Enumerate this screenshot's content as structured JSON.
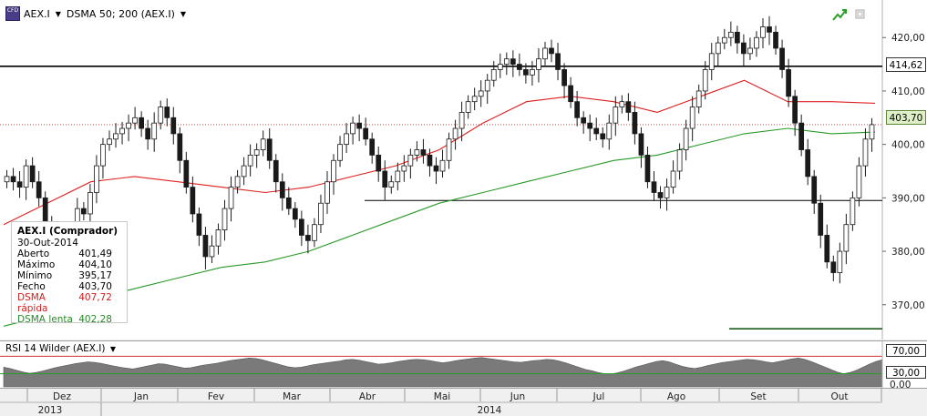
{
  "header": {
    "ticker": "AEX.I",
    "cfd_icon": "CFD",
    "indicator": "DSMA 50; 200 (AEX.I)",
    "icons": [
      "cfd-icon",
      "dropdown-icon",
      "trend-icon",
      "window-icon"
    ]
  },
  "info": {
    "title": "AEX.I (Comprador)",
    "date": "30-Out-2014",
    "rows": [
      {
        "label": "Aberto",
        "value": "401,49"
      },
      {
        "label": "Máximo",
        "value": "404,10"
      },
      {
        "label": "Mínimo",
        "value": "395,17"
      },
      {
        "label": "Fecho",
        "value": "403,70"
      },
      {
        "label": "DSMA rápida",
        "value": "407,72"
      },
      {
        "label": "DSMA lenta",
        "value": "402,28"
      }
    ]
  },
  "price_labels": {
    "hline": "414,62",
    "current": "403,70"
  },
  "rsi": {
    "title": "RSI 14 Wilder (AEX.I)",
    "upper": "70,00",
    "lower": "30,00",
    "zero": "0,00"
  },
  "colors": {
    "candle": "#1a1a1a",
    "fast_ma": "#e02020",
    "slow_ma": "#2a9a2a",
    "rsi_fill": "#7a7a7a",
    "current_line": "#c03030"
  },
  "chart_data": {
    "type": "candlestick",
    "ylim": [
      364,
      426
    ],
    "yticks": [
      "420,00",
      "410,00",
      "400,00",
      "390,00",
      "380,00",
      "370,00"
    ],
    "ytick_values": [
      420,
      410,
      400,
      390,
      380,
      370
    ],
    "months": [
      "Dez",
      "Jan",
      "Fev",
      "Mar",
      "Abr",
      "Mai",
      "Jun",
      "Jul",
      "Ago",
      "Set",
      "Out"
    ],
    "years": [
      "2013",
      "2014"
    ],
    "horizontal_lines": [
      414.62,
      389.5,
      365.5
    ],
    "current_price": 403.7,
    "close": [
      394,
      393,
      392,
      396,
      393,
      390,
      385,
      382,
      378,
      380,
      384,
      388,
      387,
      391,
      396,
      400,
      401,
      402,
      403,
      404,
      405,
      403,
      401,
      404,
      407,
      405,
      402,
      397,
      392,
      387,
      383,
      379,
      381,
      384,
      388,
      392,
      394,
      396,
      398,
      399,
      401,
      397,
      393,
      390,
      388,
      386,
      383,
      382,
      385,
      389,
      393,
      397,
      400,
      402,
      404,
      403,
      401,
      398,
      395,
      392,
      393,
      395,
      396,
      398,
      399,
      398,
      396,
      395,
      397,
      401,
      403,
      406,
      408,
      409,
      410,
      412,
      414,
      415,
      416,
      415,
      414,
      413,
      414,
      416,
      418,
      417,
      414,
      411,
      408,
      405,
      404,
      403,
      402,
      401,
      404,
      407,
      408,
      406,
      402,
      398,
      393,
      391,
      390,
      392,
      395,
      399,
      403,
      407,
      410,
      414,
      417,
      419,
      420,
      421,
      419,
      417,
      418,
      420,
      422,
      421,
      418,
      414,
      409,
      404,
      399,
      394,
      389,
      383,
      378,
      376,
      380,
      385,
      390,
      396,
      401,
      403.7
    ],
    "fast_ma": {
      "x": [
        0,
        0.05,
        0.1,
        0.15,
        0.2,
        0.25,
        0.3,
        0.35,
        0.4,
        0.45,
        0.5,
        0.55,
        0.6,
        0.65,
        0.7,
        0.75,
        0.8,
        0.85,
        0.9,
        0.95,
        1.0
      ],
      "y": [
        385,
        389,
        393,
        394,
        393,
        392,
        391,
        392,
        394,
        396,
        399,
        404,
        408,
        409,
        408,
        406,
        409,
        412,
        408,
        408,
        407.7
      ]
    },
    "slow_ma": {
      "x": [
        0,
        0.05,
        0.1,
        0.15,
        0.2,
        0.25,
        0.3,
        0.35,
        0.4,
        0.45,
        0.5,
        0.55,
        0.6,
        0.65,
        0.7,
        0.75,
        0.8,
        0.85,
        0.9,
        0.95,
        1.0
      ],
      "y": [
        366,
        368,
        371,
        373,
        375,
        377,
        378,
        380,
        383,
        386,
        389,
        391,
        393,
        395,
        397,
        398,
        400,
        402,
        403,
        402,
        402.3
      ]
    },
    "rsi_values": [
      45,
      42,
      38,
      34,
      31,
      33,
      36,
      40,
      44,
      47,
      50,
      53,
      55,
      57,
      56,
      54,
      51,
      48,
      45,
      43,
      41,
      44,
      47,
      50,
      53,
      52,
      49,
      46,
      43,
      44,
      47,
      50,
      52,
      54,
      57,
      60,
      62,
      64,
      66,
      65,
      62,
      58,
      54,
      50,
      46,
      44,
      45,
      48,
      51,
      53,
      55,
      57,
      59,
      62,
      63,
      61,
      58,
      55,
      52,
      53,
      55,
      58,
      60,
      62,
      63,
      62,
      60,
      57,
      55,
      57,
      60,
      62,
      64,
      66,
      67,
      65,
      63,
      61,
      59,
      57,
      56,
      58,
      60,
      61,
      63,
      62,
      59,
      55,
      50,
      45,
      40,
      37,
      33,
      30,
      29,
      32,
      36,
      41,
      46,
      50,
      54,
      58,
      60,
      57,
      52,
      47,
      44,
      42,
      45,
      49,
      52,
      55,
      57,
      59,
      61,
      63,
      62,
      60,
      57,
      55,
      58,
      61,
      64,
      66,
      63,
      58,
      52,
      46,
      40,
      34,
      30,
      33,
      38,
      45,
      52,
      58,
      62
    ]
  }
}
